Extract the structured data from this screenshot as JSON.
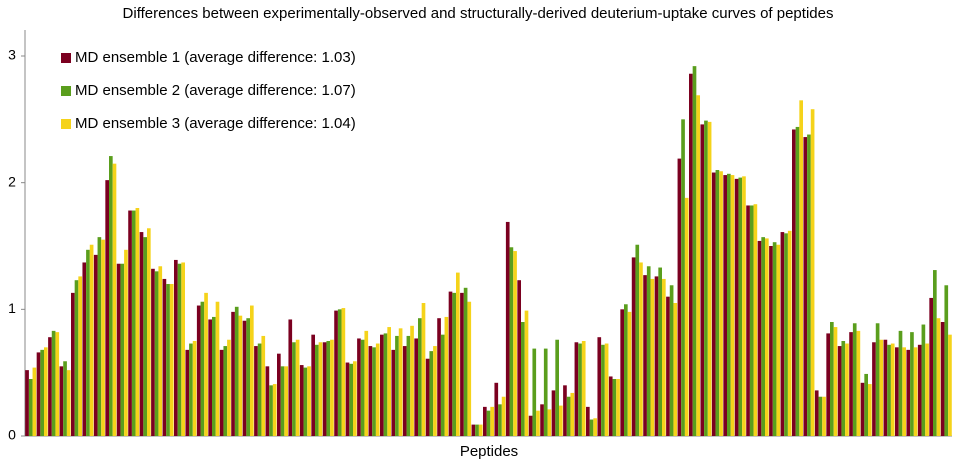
{
  "chart_data": {
    "type": "bar",
    "title": "Differences between experimentally-observed and structurally-derived deuterium-uptake curves of peptides",
    "xlabel": "Peptides",
    "categories": [
      null,
      null,
      null,
      null,
      null,
      null,
      null,
      null,
      null,
      null,
      null,
      null,
      null,
      null,
      null,
      null,
      null,
      null,
      null,
      null,
      null,
      null,
      null,
      null,
      null,
      null,
      null,
      null,
      null,
      null,
      null,
      null,
      null,
      null,
      null,
      null,
      null,
      null,
      null,
      null,
      null,
      null,
      null,
      null,
      null,
      null,
      null,
      null,
      null,
      null,
      null,
      null,
      null,
      null,
      null,
      null,
      null,
      null,
      null,
      null,
      null,
      null,
      null,
      null,
      null,
      null,
      null,
      null,
      null,
      null,
      null,
      null,
      null,
      null,
      null,
      null,
      null,
      null,
      null,
      null,
      null
    ],
    "series": [
      {
        "name": "MD ensemble 1 (average difference: 1.03)",
        "color": "#7b0020",
        "values": [
          0.52,
          0.66,
          0.78,
          0.55,
          1.13,
          1.37,
          1.43,
          2.02,
          1.36,
          1.78,
          1.61,
          1.32,
          1.24,
          1.39,
          0.68,
          1.03,
          0.92,
          0.68,
          0.98,
          0.91,
          0.71,
          0.55,
          0.65,
          0.92,
          0.56,
          0.8,
          0.74,
          0.99,
          0.58,
          0.77,
          0.71,
          0.8,
          0.68,
          0.71,
          0.77,
          0.61,
          0.93,
          1.14,
          1.13,
          0.09,
          0.23,
          0.42,
          1.69,
          1.23,
          0.16,
          0.25,
          0.36,
          0.4,
          0.74,
          0.23,
          0.78,
          0.47,
          1.0,
          1.41,
          1.27,
          1.26,
          1.1,
          2.19,
          2.86,
          2.46,
          2.08,
          2.06,
          2.03,
          1.82,
          1.54,
          1.5,
          1.61,
          2.42,
          2.36,
          0.36,
          0.81,
          0.71,
          0.82,
          0.42,
          0.74,
          0.76,
          0.7,
          0.68,
          0.72,
          1.09,
          0.9
        ]
      },
      {
        "name": "MD ensemble 2 (average difference: 1.07)",
        "color": "#5a9e1d",
        "values": [
          0.45,
          0.68,
          0.83,
          0.59,
          1.23,
          1.47,
          1.57,
          2.21,
          1.36,
          1.78,
          1.57,
          1.3,
          1.2,
          1.36,
          0.73,
          1.06,
          0.94,
          0.71,
          1.02,
          0.93,
          0.73,
          0.4,
          0.55,
          0.74,
          0.54,
          0.72,
          0.75,
          1.0,
          0.57,
          0.76,
          0.7,
          0.81,
          0.79,
          0.79,
          0.93,
          0.67,
          0.8,
          1.13,
          1.17,
          0.09,
          0.2,
          0.25,
          1.49,
          0.9,
          0.69,
          0.69,
          0.76,
          0.31,
          0.73,
          0.13,
          0.72,
          0.45,
          1.04,
          1.51,
          1.34,
          1.33,
          1.19,
          2.5,
          2.92,
          2.49,
          2.1,
          2.07,
          2.04,
          1.82,
          1.57,
          1.53,
          1.6,
          2.44,
          2.38,
          0.31,
          0.9,
          0.75,
          0.89,
          0.49,
          0.89,
          0.72,
          0.83,
          0.82,
          0.88,
          1.31,
          1.19
        ]
      },
      {
        "name": "MD ensemble 3 (average difference: 1.04)",
        "color": "#f5d31a",
        "values": [
          0.54,
          0.7,
          0.82,
          0.52,
          1.26,
          1.51,
          1.55,
          2.15,
          1.47,
          1.8,
          1.64,
          1.34,
          1.2,
          1.37,
          0.75,
          1.13,
          1.06,
          0.76,
          0.95,
          1.03,
          0.79,
          0.41,
          0.55,
          0.76,
          0.55,
          0.74,
          0.76,
          1.01,
          0.59,
          0.83,
          0.73,
          0.86,
          0.85,
          0.87,
          1.05,
          0.71,
          0.94,
          1.29,
          1.06,
          0.09,
          0.23,
          0.31,
          1.46,
          0.99,
          0.2,
          0.21,
          0.24,
          0.34,
          0.75,
          0.14,
          0.73,
          0.45,
          0.98,
          1.37,
          1.24,
          1.24,
          1.05,
          1.88,
          2.69,
          2.48,
          2.09,
          2.06,
          2.05,
          1.83,
          1.56,
          1.51,
          1.62,
          2.65,
          2.58,
          0.31,
          0.86,
          0.73,
          0.83,
          0.41,
          0.76,
          0.73,
          0.7,
          0.7,
          0.73,
          0.93,
          0.8
        ]
      }
    ],
    "ylim": [
      0,
      3.02
    ],
    "yticks": [
      0,
      1,
      2,
      3
    ],
    "grid": false,
    "legend": "upper-left"
  }
}
